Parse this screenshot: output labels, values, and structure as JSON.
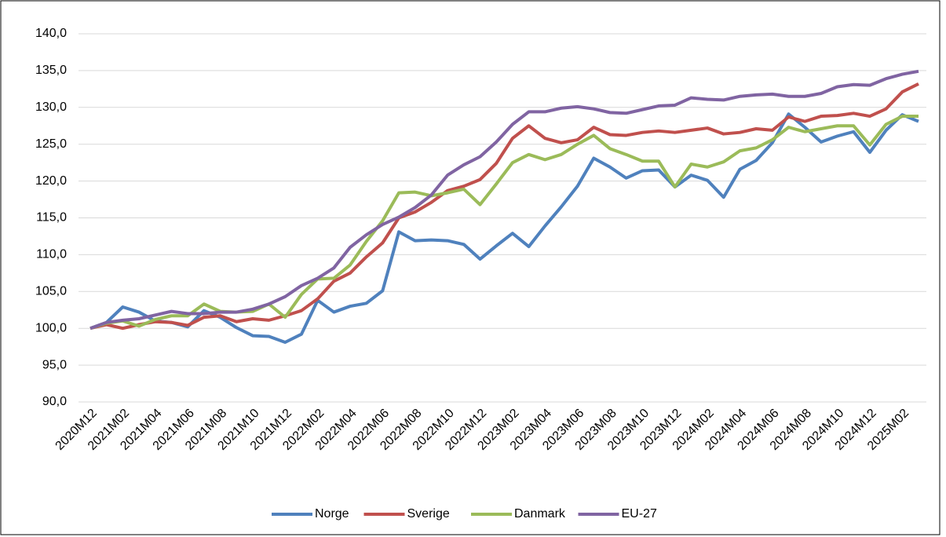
{
  "chart_data": {
    "type": "line",
    "categories": [
      "2020M12",
      null,
      "2021M02",
      null,
      "2021M04",
      null,
      "2021M06",
      null,
      "2021M08",
      null,
      "2021M10",
      null,
      "2021M12",
      null,
      "2022M02",
      null,
      "2022M04",
      null,
      "2022M06",
      null,
      "2022M08",
      null,
      "2022M10",
      null,
      "2022M12",
      null,
      "2023M02",
      null,
      "2023M04",
      null,
      "2023M06",
      null,
      "2023M08",
      null,
      "2023M10",
      null,
      "2023M12",
      null,
      "2024M02",
      null,
      "2024M04",
      null,
      "2024M06",
      null,
      "2024M08",
      null,
      "2024M10",
      null,
      "2024M12",
      null,
      "2025M02",
      null
    ],
    "series": [
      {
        "name": "Norge",
        "color": "#4f81bd",
        "values": [
          100,
          100.8,
          102.9,
          102.2,
          101.0,
          100.8,
          100.2,
          102.4,
          101.5,
          100.1,
          99.0,
          98.9,
          98.1,
          99.2,
          103.8,
          102.2,
          103.0,
          103.4,
          105.1,
          113.1,
          111.9,
          112.0,
          111.9,
          111.4,
          109.4,
          111.2,
          112.9,
          111.1,
          113.9,
          116.5,
          119.3,
          123.1,
          121.9,
          120.4,
          121.4,
          121.5,
          119.2,
          120.8,
          120.1,
          117.8,
          121.6,
          122.8,
          125.2,
          129.1,
          127.3,
          125.3,
          126.1,
          126.7,
          123.9,
          126.9,
          129.0,
          128.1
        ]
      },
      {
        "name": "Sverige",
        "color": "#c0504d",
        "values": [
          100,
          100.5,
          100.0,
          100.5,
          100.9,
          100.8,
          100.4,
          101.5,
          101.7,
          100.9,
          101.3,
          101.1,
          101.7,
          102.4,
          104.0,
          106.4,
          107.5,
          109.7,
          111.6,
          115.0,
          115.8,
          117.1,
          118.7,
          119.3,
          120.2,
          122.4,
          125.8,
          127.5,
          125.8,
          125.2,
          125.6,
          127.3,
          126.3,
          126.2,
          126.6,
          126.8,
          126.6,
          126.9,
          127.2,
          126.4,
          126.6,
          127.1,
          126.9,
          128.7,
          128.1,
          128.8,
          128.9,
          129.2,
          128.8,
          129.8,
          132.1,
          133.2
        ]
      },
      {
        "name": "Danmark",
        "color": "#9bbb59",
        "values": [
          100,
          100.7,
          101.0,
          100.3,
          101.2,
          101.7,
          101.7,
          103.3,
          102.3,
          102.2,
          102.3,
          103.3,
          101.5,
          104.6,
          106.7,
          106.8,
          108.6,
          111.8,
          114.6,
          118.4,
          118.5,
          118.0,
          118.4,
          118.9,
          116.8,
          119.6,
          122.5,
          123.6,
          122.9,
          123.6,
          125.0,
          126.2,
          124.4,
          123.6,
          122.7,
          122.7,
          119.2,
          122.3,
          121.9,
          122.6,
          124.1,
          124.5,
          125.6,
          127.3,
          126.7,
          127.1,
          127.5,
          127.5,
          124.9,
          127.7,
          128.8,
          128.8
        ]
      },
      {
        "name": "EU-27",
        "color": "#8064a2",
        "values": [
          100,
          100.8,
          101.1,
          101.3,
          101.8,
          102.3,
          102.0,
          102.0,
          102.2,
          102.2,
          102.6,
          103.3,
          104.3,
          105.8,
          106.8,
          108.2,
          111.0,
          112.7,
          114.1,
          115.1,
          116.4,
          118.1,
          120.8,
          122.2,
          123.3,
          125.3,
          127.7,
          129.4,
          129.4,
          129.9,
          130.1,
          129.8,
          129.3,
          129.2,
          129.7,
          130.2,
          130.3,
          131.3,
          131.1,
          131.0,
          131.5,
          131.7,
          131.8,
          131.5,
          131.5,
          131.9,
          132.8,
          133.1,
          133.0,
          133.9,
          134.5,
          134.9
        ]
      }
    ],
    "ylim": [
      90,
      140
    ],
    "yticks": [
      {
        "value": 90,
        "label": "90,0"
      },
      {
        "value": 95,
        "label": "95,0"
      },
      {
        "value": 100,
        "label": "100,0"
      },
      {
        "value": 105,
        "label": "105,0"
      },
      {
        "value": 110,
        "label": "110,0"
      },
      {
        "value": 115,
        "label": "115,0"
      },
      {
        "value": 120,
        "label": "120,0"
      },
      {
        "value": 125,
        "label": "125,0"
      },
      {
        "value": 130,
        "label": "130,0"
      },
      {
        "value": 135,
        "label": "135,0"
      },
      {
        "value": 140,
        "label": "140,0"
      }
    ],
    "grid": true,
    "legend": "bottom"
  }
}
